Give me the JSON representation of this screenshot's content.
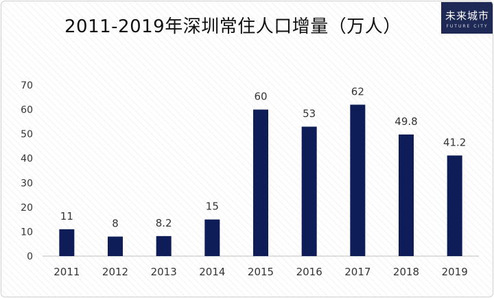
{
  "title": "2011-2019年深圳常住人口增量（万人）",
  "logo": {
    "text": "未来城市",
    "subtext": "FUTURE CITY"
  },
  "colors": {
    "bar": "#0e1d57",
    "axis": "#bfbfbf",
    "text": "#333333"
  },
  "chart_data": {
    "type": "bar",
    "categories": [
      "2011",
      "2012",
      "2013",
      "2014",
      "2015",
      "2016",
      "2017",
      "2018",
      "2019"
    ],
    "values": [
      11,
      8,
      8.2,
      15,
      60,
      53,
      62,
      49.8,
      41.2
    ],
    "data_labels": [
      "11",
      "8",
      "8.2",
      "15",
      "60",
      "53",
      "62",
      "49.8",
      "41.2"
    ],
    "title": "2011-2019年深圳常住人口增量（万人）",
    "ylim": [
      0,
      70
    ],
    "yticks": [
      0,
      10,
      20,
      30,
      40,
      50,
      60,
      70
    ],
    "grid": false,
    "legend": "none"
  }
}
